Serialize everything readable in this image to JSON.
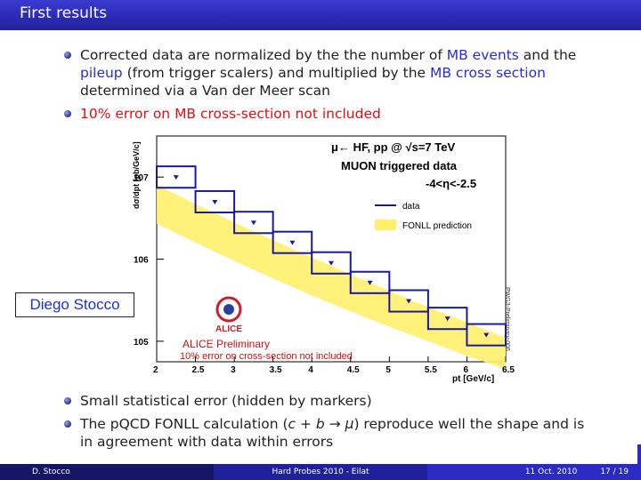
{
  "header": {
    "title": "First results"
  },
  "bullets": {
    "b1": {
      "p1": "Corrected data are normalized by the the number of ",
      "p2": "MB events",
      "p3": " and the ",
      "p4": "pileup",
      "p5": " (from trigger scalers) and multiplied by the ",
      "p6": "MB cross section",
      "p7": " determined via a Van der Meer scan"
    },
    "b2": "10% error on MB cross-section not included"
  },
  "bottom": {
    "b3": "Small statistical error (hidden by markers)",
    "b4_pre": "The pQCD FONLL calculation (",
    "b4_math": "c + b → μ",
    "b4_post": ") reproduce well the shape and is in agreement with data within errors"
  },
  "name_label": "Diego Stocco",
  "footer": {
    "author": "D. Stocco",
    "event": "Hard Probes 2010 - Eilat",
    "date": "11 Oct. 2010",
    "page": "17 / 19"
  },
  "chart_data": {
    "type": "bar",
    "title_lines": [
      "μ← HF, pp @ √s=7 TeV",
      "MUON triggered data",
      "-4<η<-2.5"
    ],
    "ylabel": "dσ/dpt [pb/GeV/c]",
    "xlabel": "pt [GeV/c]",
    "x_ticks": [
      "2",
      "2.5",
      "3",
      "3.5",
      "4",
      "4.5",
      "5",
      "5.5",
      "6",
      "6.5"
    ],
    "y_ticks": [
      "10^7",
      "10^6",
      "10^5"
    ],
    "legend": [
      "data",
      "FONLL prediction"
    ],
    "annotation": "ALICE Preliminary",
    "note": "10% error on cross-section not included",
    "side_label": "PWG3-Preliminary-006",
    "logo_text": "ALICE",
    "xlim": [
      2,
      6.5
    ],
    "ylog_range": [
      4.75,
      7.5
    ],
    "bins": [
      {
        "xlo": 2.0,
        "xhi": 2.5,
        "y": 10000000
      },
      {
        "xlo": 2.5,
        "xhi": 3.0,
        "y": 5000000
      },
      {
        "xlo": 3.0,
        "xhi": 3.5,
        "y": 2800000
      },
      {
        "xlo": 3.5,
        "xhi": 4.0,
        "y": 1600000
      },
      {
        "xlo": 4.0,
        "xhi": 4.5,
        "y": 900000
      },
      {
        "xlo": 4.5,
        "xhi": 5.0,
        "y": 520000
      },
      {
        "xlo": 5.0,
        "xhi": 5.5,
        "y": 310000
      },
      {
        "xlo": 5.5,
        "xhi": 6.0,
        "y": 190000
      },
      {
        "xlo": 6.0,
        "xhi": 6.5,
        "y": 120000
      }
    ],
    "band_upper": [
      [
        2.0,
        8000000
      ],
      [
        2.5,
        4700000
      ],
      [
        3.0,
        2800000
      ],
      [
        3.5,
        1700000
      ],
      [
        4.0,
        1050000
      ],
      [
        4.5,
        650000
      ],
      [
        5.0,
        410000
      ],
      [
        5.5,
        260000
      ],
      [
        6.0,
        170000
      ],
      [
        6.5,
        110000
      ]
    ],
    "band_lower": [
      [
        2.0,
        2700000
      ],
      [
        2.5,
        1600000
      ],
      [
        3.0,
        950000
      ],
      [
        3.5,
        580000
      ],
      [
        4.0,
        360000
      ],
      [
        4.5,
        230000
      ],
      [
        5.0,
        150000
      ],
      [
        5.5,
        100000
      ],
      [
        6.0,
        66000
      ],
      [
        6.5,
        46000
      ]
    ],
    "colors": {
      "data": "#1a1aa0",
      "band": "#fff06a",
      "text": "#000000",
      "annotation": "#cc1111"
    }
  }
}
